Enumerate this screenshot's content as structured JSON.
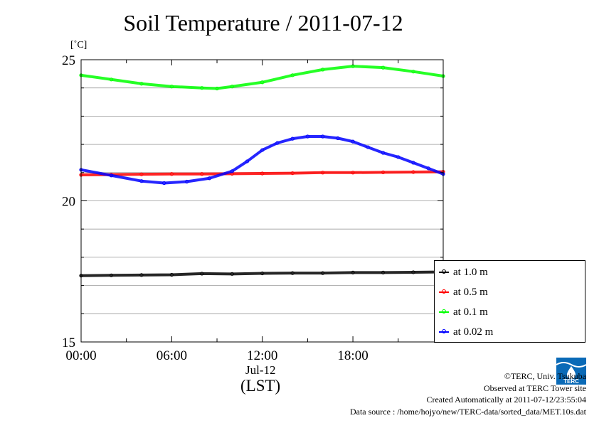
{
  "chart_data": {
    "type": "line",
    "title": "Soil Temperature / 2011-07-12",
    "ylabel": "[˚C]",
    "xlabel": "(LST)",
    "x_date_label": "Jul-12",
    "x_ticks": [
      "00:00",
      "06:00",
      "12:00",
      "18:00"
    ],
    "x_tick_hours": [
      0,
      6,
      12,
      18
    ],
    "xlim_hours": [
      0,
      23.98
    ],
    "y_ticks": [
      "15",
      "20",
      "25"
    ],
    "y_tick_values": [
      15,
      20,
      25
    ],
    "ylim": [
      15,
      25
    ],
    "grid": true,
    "legend_position": "bottom-right, outside plot",
    "series": [
      {
        "name": "at 1.0 m",
        "color": "#000000",
        "points": [
          [
            0,
            17.35
          ],
          [
            2,
            17.36
          ],
          [
            4,
            17.37
          ],
          [
            6,
            17.38
          ],
          [
            8,
            17.42
          ],
          [
            10,
            17.41
          ],
          [
            12,
            17.43
          ],
          [
            14,
            17.44
          ],
          [
            16,
            17.44
          ],
          [
            18,
            17.46
          ],
          [
            20,
            17.46
          ],
          [
            22,
            17.47
          ],
          [
            24,
            17.48
          ]
        ]
      },
      {
        "name": "at 0.5 m",
        "color": "#ff0000",
        "points": [
          [
            0,
            20.92
          ],
          [
            2,
            20.93
          ],
          [
            4,
            20.94
          ],
          [
            6,
            20.95
          ],
          [
            8,
            20.95
          ],
          [
            10,
            20.96
          ],
          [
            12,
            20.97
          ],
          [
            14,
            20.98
          ],
          [
            16,
            21.0
          ],
          [
            18,
            21.0
          ],
          [
            20,
            21.01
          ],
          [
            22,
            21.02
          ],
          [
            24,
            21.03
          ]
        ]
      },
      {
        "name": "at 0.1 m",
        "color": "#00ff00",
        "points": [
          [
            0,
            24.45
          ],
          [
            2,
            24.3
          ],
          [
            4,
            24.15
          ],
          [
            6,
            24.05
          ],
          [
            8,
            24.0
          ],
          [
            9,
            23.98
          ],
          [
            10,
            24.05
          ],
          [
            12,
            24.2
          ],
          [
            14,
            24.45
          ],
          [
            16,
            24.65
          ],
          [
            18,
            24.77
          ],
          [
            20,
            24.72
          ],
          [
            22,
            24.58
          ],
          [
            24,
            24.42
          ]
        ]
      },
      {
        "name": "at 0.02 m",
        "color": "#0000ff",
        "points": [
          [
            0,
            21.1
          ],
          [
            2,
            20.9
          ],
          [
            4,
            20.7
          ],
          [
            5.5,
            20.63
          ],
          [
            7,
            20.68
          ],
          [
            8.5,
            20.8
          ],
          [
            10,
            21.05
          ],
          [
            11,
            21.4
          ],
          [
            12,
            21.8
          ],
          [
            13,
            22.05
          ],
          [
            14,
            22.2
          ],
          [
            15,
            22.28
          ],
          [
            16,
            22.28
          ],
          [
            17,
            22.22
          ],
          [
            18,
            22.1
          ],
          [
            19,
            21.9
          ],
          [
            20,
            21.7
          ],
          [
            21,
            21.55
          ],
          [
            22,
            21.35
          ],
          [
            23,
            21.15
          ],
          [
            24,
            20.95
          ]
        ]
      }
    ]
  },
  "credits": {
    "copyright": "©TERC, Univ. Tsukuba",
    "observed": "Observed at TERC Tower site",
    "created": "Created Automatically at 2011-07-12/23:55:04",
    "source": "Data source : /home/hojyo/new/TERC-data/sorted_data/MET.10s.dat"
  },
  "logo": {
    "text": "TERC"
  }
}
